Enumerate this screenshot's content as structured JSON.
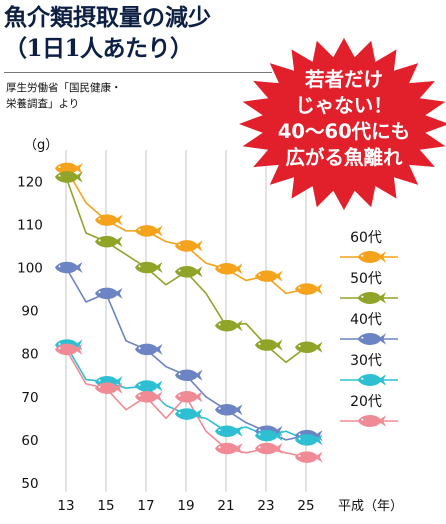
{
  "title": {
    "line1": "魚介類摂取量の減少",
    "line2": "（1日1人あたり）"
  },
  "source": {
    "line1": "厚生労働省「国民健康・",
    "line2": "栄養調査」より"
  },
  "callout": {
    "lines": [
      "若者だけ",
      "じゃない！",
      "40～60代にも",
      "広がる魚離れ"
    ],
    "color": "#e2202c"
  },
  "chart_data": {
    "type": "line",
    "title": "魚介類摂取量の減少（1日1人あたり）",
    "ylabel": "（g）",
    "xlabel": "平成（年）",
    "ylim": [
      50,
      125
    ],
    "yticks": [
      50,
      60,
      70,
      80,
      90,
      100,
      110,
      120
    ],
    "xticks": [
      13,
      15,
      17,
      19,
      21,
      23,
      25
    ],
    "grid": "vertical",
    "legend_position": "right",
    "marker": "fish",
    "series": [
      {
        "name": "60代",
        "color": "#f5a21c",
        "x": [
          13,
          14,
          15,
          16,
          17,
          18,
          19,
          20,
          21,
          22,
          23,
          24,
          25
        ],
        "values": [
          123,
          115,
          111,
          108.5,
          108.5,
          106,
          105,
          101,
          99.7,
          97,
          98,
          94,
          95
        ]
      },
      {
        "name": "50代",
        "color": "#8fa429",
        "x": [
          13,
          14,
          15,
          16,
          17,
          18,
          19,
          20,
          21,
          22,
          23,
          24,
          25
        ],
        "values": [
          121,
          108,
          106,
          103,
          100,
          96,
          99,
          94,
          86.5,
          87,
          82,
          78,
          81.5
        ]
      },
      {
        "name": "40代",
        "color": "#6c84c4",
        "x": [
          13,
          14,
          15,
          16,
          17,
          18,
          19,
          20,
          21,
          22,
          23,
          24,
          25
        ],
        "values": [
          100,
          92,
          94,
          83,
          81,
          77,
          75,
          70,
          67,
          64,
          62,
          60,
          61
        ]
      },
      {
        "name": "30代",
        "color": "#2ec0d2",
        "x": [
          13,
          14,
          15,
          16,
          17,
          18,
          19,
          20,
          21,
          22,
          23,
          24,
          25
        ],
        "values": [
          82,
          74,
          73.5,
          72,
          72.5,
          68,
          66,
          65,
          62,
          63,
          61,
          62,
          60
        ]
      },
      {
        "name": "20代",
        "color": "#f08b96",
        "x": [
          13,
          14,
          15,
          16,
          17,
          18,
          19,
          20,
          21,
          22,
          23,
          24,
          25
        ],
        "values": [
          81,
          73,
          72,
          67,
          70,
          65,
          70,
          62,
          58,
          57,
          58,
          57,
          56
        ]
      }
    ]
  }
}
